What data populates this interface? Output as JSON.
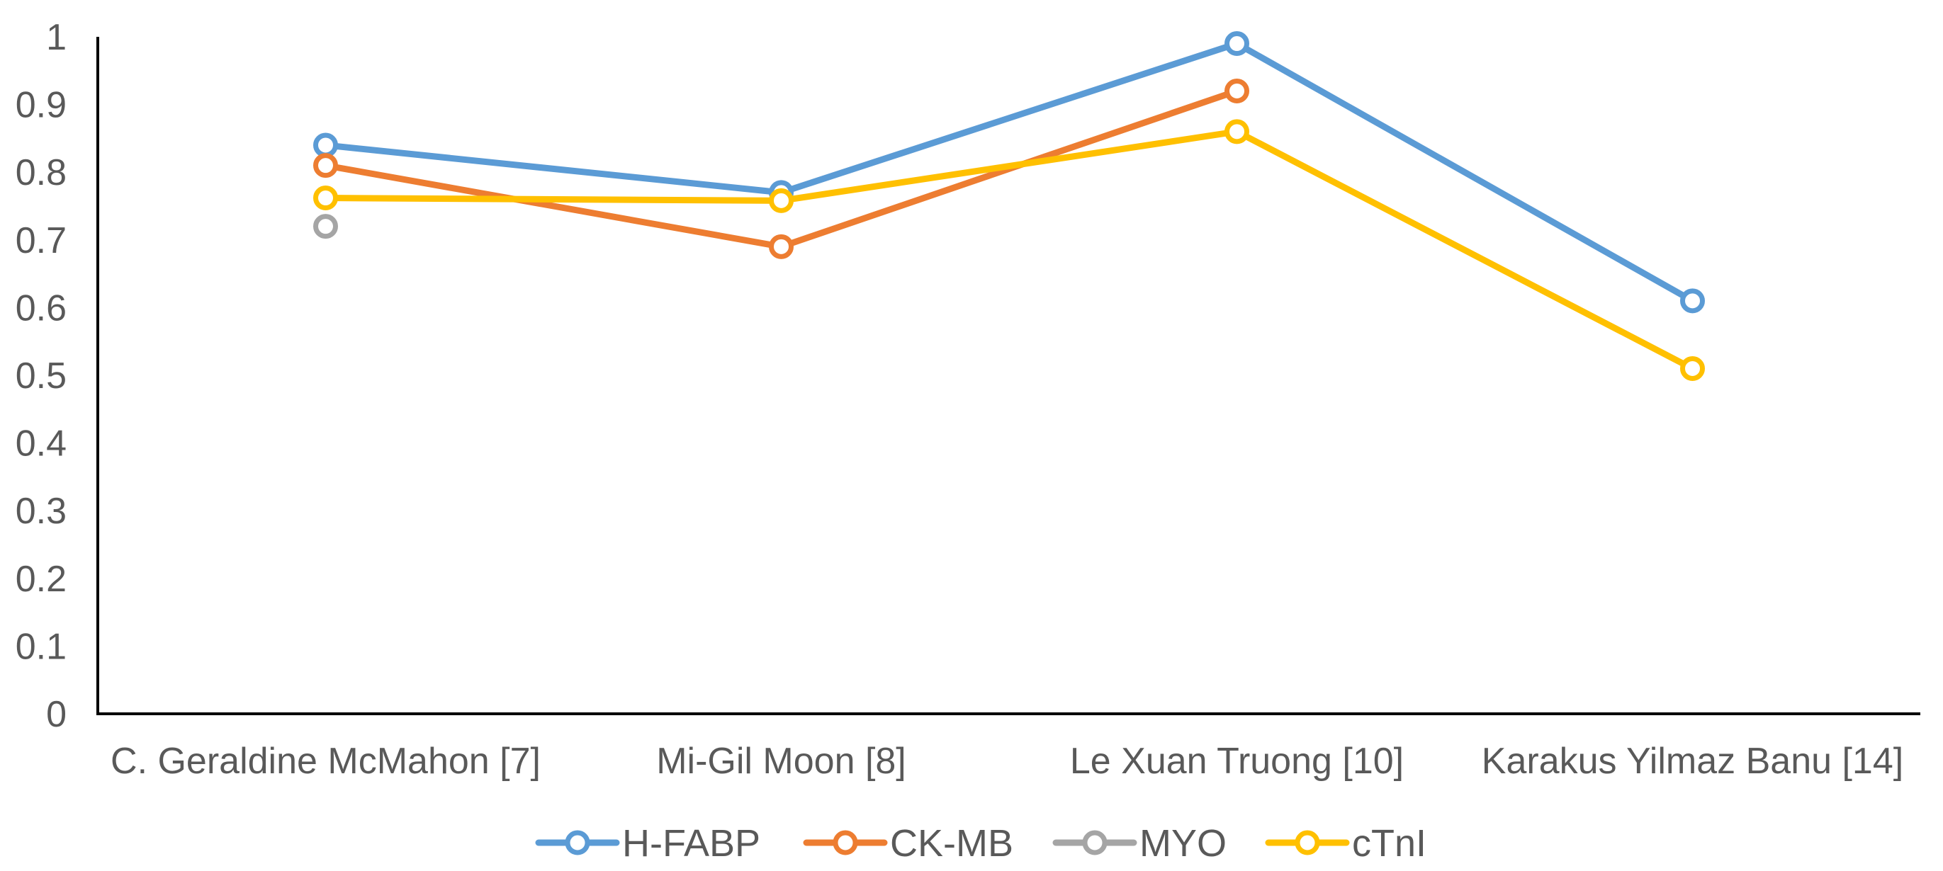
{
  "chart_data": {
    "type": "line",
    "title": "",
    "xlabel": "",
    "ylabel": "",
    "ylim": [
      0,
      1
    ],
    "yticks": [
      "0",
      "0.1",
      "0.2",
      "0.3",
      "0.4",
      "0.5",
      "0.6",
      "0.7",
      "0.8",
      "0.9",
      "1"
    ],
    "categories": [
      "C. Geraldine McMahon [7]",
      "Mi-Gil Moon [8]",
      "Le Xuan Truong [10]",
      "Karakus Yilmaz Banu [14]"
    ],
    "series": [
      {
        "name": "H-FABP",
        "color": "#5B9BD5",
        "values": [
          0.84,
          0.77,
          0.99,
          0.61
        ]
      },
      {
        "name": "CK-MB",
        "color": "#ED7D31",
        "values": [
          0.81,
          0.69,
          0.92,
          null
        ]
      },
      {
        "name": "MYO",
        "color": "#A5A5A5",
        "values": [
          0.72,
          null,
          null,
          null
        ]
      },
      {
        "name": "cTnI",
        "color": "#FFC000",
        "values": [
          0.762,
          0.758,
          0.86,
          0.51
        ]
      }
    ],
    "legend_position": "bottom",
    "grid": false
  }
}
